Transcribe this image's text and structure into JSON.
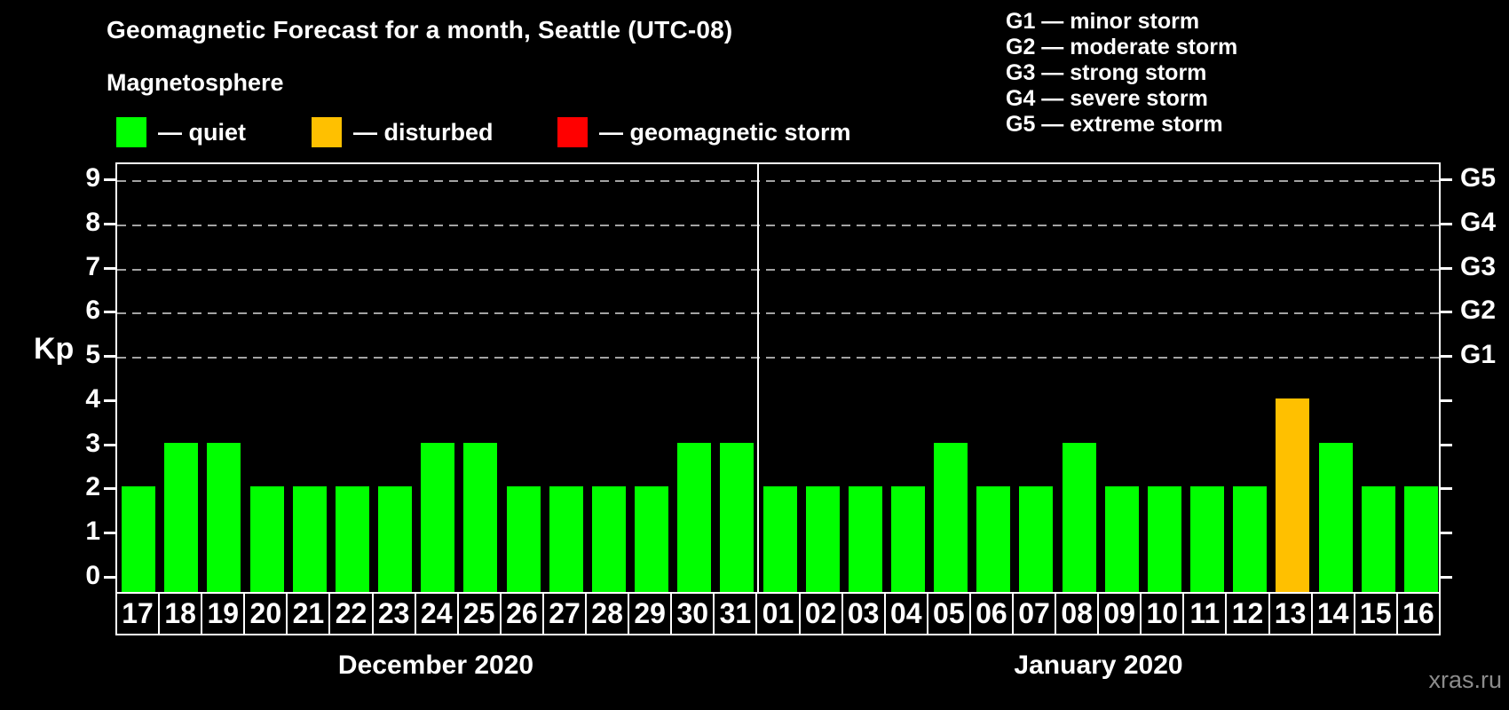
{
  "title": "Geomagnetic Forecast for a month, Seattle (UTC-08)",
  "legend": {
    "heading": "Magnetosphere",
    "items": [
      {
        "key": "quiet",
        "label": "— quiet",
        "color": "#00ff00"
      },
      {
        "key": "disturbed",
        "label": "— disturbed",
        "color": "#ffc000"
      },
      {
        "key": "storm",
        "label": "— geomagnetic storm",
        "color": "#ff0000"
      }
    ]
  },
  "g_legend": [
    "G1 — minor storm",
    "G2 — moderate storm",
    "G3 — strong storm",
    "G4 — severe storm",
    "G5 — extreme storm"
  ],
  "watermark": "xras.ru",
  "chart_data": {
    "type": "bar",
    "ylabel": "Kp",
    "ylim": [
      0,
      9
    ],
    "y_ticks": [
      0,
      1,
      2,
      3,
      4,
      5,
      6,
      7,
      8,
      9
    ],
    "grid_levels": [
      5,
      6,
      7,
      8,
      9
    ],
    "right_axis": [
      {
        "kp": 5,
        "label": "G1"
      },
      {
        "kp": 6,
        "label": "G2"
      },
      {
        "kp": 7,
        "label": "G3"
      },
      {
        "kp": 8,
        "label": "G4"
      },
      {
        "kp": 9,
        "label": "G5"
      }
    ],
    "status_colors": {
      "quiet": "#00ff00",
      "disturbed": "#ffc000",
      "storm": "#ff0000"
    },
    "groups": [
      {
        "month_label": "December 2020",
        "days": [
          {
            "day": "17",
            "kp": 2,
            "status": "quiet"
          },
          {
            "day": "18",
            "kp": 3,
            "status": "quiet"
          },
          {
            "day": "19",
            "kp": 3,
            "status": "quiet"
          },
          {
            "day": "20",
            "kp": 2,
            "status": "quiet"
          },
          {
            "day": "21",
            "kp": 2,
            "status": "quiet"
          },
          {
            "day": "22",
            "kp": 2,
            "status": "quiet"
          },
          {
            "day": "23",
            "kp": 2,
            "status": "quiet"
          },
          {
            "day": "24",
            "kp": 3,
            "status": "quiet"
          },
          {
            "day": "25",
            "kp": 3,
            "status": "quiet"
          },
          {
            "day": "26",
            "kp": 2,
            "status": "quiet"
          },
          {
            "day": "27",
            "kp": 2,
            "status": "quiet"
          },
          {
            "day": "28",
            "kp": 2,
            "status": "quiet"
          },
          {
            "day": "29",
            "kp": 2,
            "status": "quiet"
          },
          {
            "day": "30",
            "kp": 3,
            "status": "quiet"
          },
          {
            "day": "31",
            "kp": 3,
            "status": "quiet"
          }
        ]
      },
      {
        "month_label": "January 2020",
        "days": [
          {
            "day": "01",
            "kp": 2,
            "status": "quiet"
          },
          {
            "day": "02",
            "kp": 2,
            "status": "quiet"
          },
          {
            "day": "03",
            "kp": 2,
            "status": "quiet"
          },
          {
            "day": "04",
            "kp": 2,
            "status": "quiet"
          },
          {
            "day": "05",
            "kp": 3,
            "status": "quiet"
          },
          {
            "day": "06",
            "kp": 2,
            "status": "quiet"
          },
          {
            "day": "07",
            "kp": 2,
            "status": "quiet"
          },
          {
            "day": "08",
            "kp": 3,
            "status": "quiet"
          },
          {
            "day": "09",
            "kp": 2,
            "status": "quiet"
          },
          {
            "day": "10",
            "kp": 2,
            "status": "quiet"
          },
          {
            "day": "11",
            "kp": 2,
            "status": "quiet"
          },
          {
            "day": "12",
            "kp": 2,
            "status": "quiet"
          },
          {
            "day": "13",
            "kp": 4,
            "status": "disturbed"
          },
          {
            "day": "14",
            "kp": 3,
            "status": "quiet"
          },
          {
            "day": "15",
            "kp": 2,
            "status": "quiet"
          },
          {
            "day": "16",
            "kp": 2,
            "status": "quiet"
          }
        ]
      }
    ]
  }
}
